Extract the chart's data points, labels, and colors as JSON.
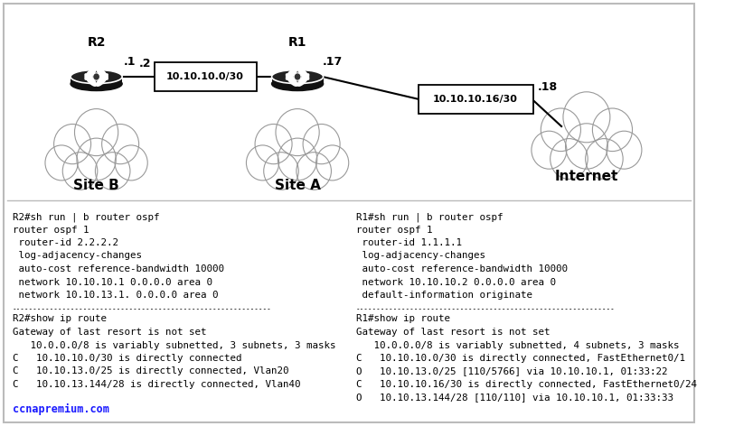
{
  "bg_color": "#ffffff",
  "border_color": "#bbbbbb",
  "text_color": "#000000",
  "left_text": [
    "R2#sh run | b router ospf",
    "router ospf 1",
    " router-id 2.2.2.2",
    " log-adjacency-changes",
    " auto-cost reference-bandwidth 10000",
    " network 10.10.10.1 0.0.0.0 area 0",
    " network 10.10.13.1. 0.0.0.0 area 0"
  ],
  "left_route_text": [
    "R2#show ip route",
    "Gateway of last resort is not set",
    "   10.0.0.0/8 is variably subnetted, 3 subnets, 3 masks",
    "C   10.10.10.0/30 is directly connected",
    "C   10.10.13.0/25 is directly connected, Vlan20",
    "C   10.10.13.144/28 is directly connected, Vlan40"
  ],
  "right_text": [
    "R1#sh run | b router ospf",
    "router ospf 1",
    " router-id 1.1.1.1",
    " log-adjacency-changes",
    " auto-cost reference-bandwidth 10000",
    " network 10.10.10.2 0.0.0.0 area 0",
    " default-information originate"
  ],
  "right_route_text": [
    "R1#show ip route",
    "Gateway of last resort is not set",
    "   10.0.0.0/8 is variably subnetted, 4 subnets, 3 masks",
    "C   10.10.10.0/30 is directly connected, FastEthernet0/1",
    "O   10.10.13.0/25 [110/5766] via 10.10.10.1, 01:33:22",
    "C   10.10.10.16/30 is directly connected, FastEthernet0/24",
    "O   10.10.13.144/28 [110/110] via 10.10.10.1, 01:33:33"
  ],
  "footer_text": "ccnapremium.com",
  "footer_color": "#1a1aff",
  "link_box1_text": "10.10.10.0/30",
  "link_box2_text": "10.10.10.16/30"
}
